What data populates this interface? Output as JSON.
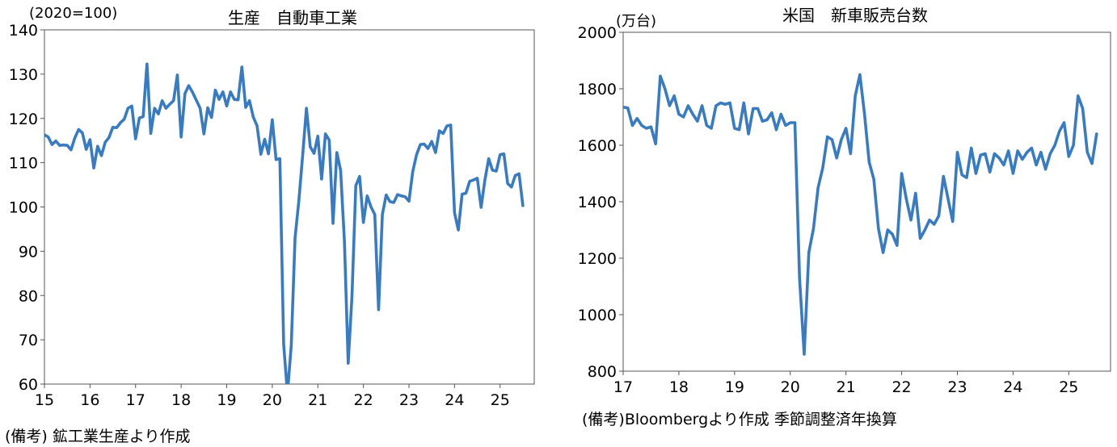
{
  "chart_data": [
    {
      "type": "line",
      "title": "生産　自動車工業",
      "unit_label": "(2020=100)",
      "ylim": [
        60,
        140
      ],
      "yticks": [
        60,
        70,
        80,
        90,
        100,
        110,
        120,
        130,
        140
      ],
      "xlim": [
        2015,
        2025.75
      ],
      "xticks": [
        "15",
        "16",
        "17",
        "18",
        "19",
        "20",
        "21",
        "22",
        "23",
        "24",
        "25"
      ],
      "grid": false,
      "color": "#3a7bbf",
      "note": "(備考) 鉱工業生産より作成",
      "series": [
        {
          "start_year": 2015,
          "values": [
            116.3,
            115.8,
            114.1,
            114.9,
            113.9,
            114.0,
            113.9,
            112.9,
            115.6,
            117.5,
            116.7,
            113.0,
            115.2,
            108.8,
            113.7,
            111.6,
            114.6,
            115.7,
            118.0,
            117.9,
            119.0,
            119.8,
            122.3,
            122.8,
            115.4,
            120.1,
            120.4,
            132.3,
            116.6,
            122.3,
            121.0,
            124.0,
            122.3,
            123.2,
            124.0,
            129.8,
            115.8,
            125.6,
            127.4,
            125.9,
            124.1,
            122.3,
            116.5,
            122.4,
            120.2,
            126.4,
            124.3,
            126.0,
            122.8,
            126.0,
            124.3,
            124.2,
            131.6,
            122.5,
            124.0,
            120.3,
            118.3,
            111.9,
            115.3,
            112.0,
            119.7,
            110.7,
            110.9,
            69.0,
            57.9,
            68.7,
            93.0,
            101.4,
            111.6,
            122.3,
            113.6,
            112.1,
            116.0,
            106.3,
            116.5,
            115.1,
            96.3,
            112.3,
            108.3,
            92.3,
            64.7,
            80.0,
            104.8,
            106.9,
            96.5,
            102.5,
            100.0,
            98.3,
            76.8,
            98.3,
            102.7,
            101.2,
            101.0,
            102.8,
            102.5,
            102.3,
            101.3,
            108.0,
            111.8,
            114.1,
            114.2,
            113.2,
            114.8,
            112.3,
            117.2,
            116.6,
            118.3,
            118.5,
            98.7,
            94.8,
            102.9,
            103.1,
            105.8,
            106.1,
            106.5,
            99.9,
            106.1,
            110.9,
            108.3,
            108.1,
            111.8,
            112.0,
            105.3,
            104.5,
            107.1,
            107.5,
            100.3
          ]
        }
      ]
    },
    {
      "type": "line",
      "title": "米国　新車販売台数",
      "unit_label": "(万台)",
      "ylim": [
        800,
        2000
      ],
      "yticks": [
        800,
        1000,
        1200,
        1400,
        1600,
        1800,
        2000
      ],
      "xlim": [
        2017,
        2025.75
      ],
      "xticks": [
        "17",
        "18",
        "19",
        "20",
        "21",
        "22",
        "23",
        "24",
        "25"
      ],
      "grid": false,
      "color": "#3a7bbf",
      "note": "(備考)Bloombergより作成 季節調整済年換算",
      "series": [
        {
          "start_year": 2017,
          "values": [
            1735,
            1732,
            1670,
            1695,
            1670,
            1660,
            1665,
            1605,
            1845,
            1800,
            1740,
            1775,
            1710,
            1700,
            1740,
            1710,
            1685,
            1740,
            1670,
            1660,
            1740,
            1750,
            1745,
            1750,
            1660,
            1655,
            1750,
            1640,
            1730,
            1730,
            1685,
            1690,
            1715,
            1655,
            1710,
            1670,
            1680,
            1680,
            1130,
            860,
            1220,
            1305,
            1450,
            1520,
            1630,
            1620,
            1555,
            1620,
            1660,
            1570,
            1775,
            1850,
            1710,
            1540,
            1480,
            1305,
            1220,
            1300,
            1285,
            1245,
            1500,
            1410,
            1335,
            1430,
            1270,
            1300,
            1335,
            1320,
            1350,
            1490,
            1410,
            1330,
            1575,
            1495,
            1485,
            1590,
            1500,
            1565,
            1570,
            1505,
            1570,
            1555,
            1530,
            1580,
            1500,
            1580,
            1550,
            1575,
            1590,
            1530,
            1575,
            1515,
            1570,
            1600,
            1650,
            1680,
            1560,
            1600,
            1775,
            1730,
            1575,
            1535,
            1640
          ]
        }
      ]
    }
  ]
}
